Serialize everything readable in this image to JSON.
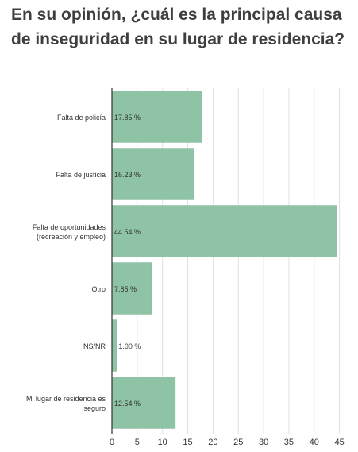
{
  "title": "En su opinión, ¿cuál es la principal causa de inseguridad en su lugar de residencia?",
  "colors": {
    "bar": "#8fc3a6",
    "bar_stroke": "#7ab393",
    "grid": "#e0e0e0",
    "axis": "#333333",
    "text": "#333333",
    "title": "#3f3f3f"
  },
  "chart_data": {
    "type": "bar",
    "orientation": "horizontal",
    "categories": [
      [
        "Falta de policía"
      ],
      [
        "Falta de justicia"
      ],
      [
        "Falta de oportunidades",
        "(recreación y empleo)"
      ],
      [
        "Otro"
      ],
      [
        "NS/NR"
      ],
      [
        "Mi lugar de residencia es",
        "seguro"
      ]
    ],
    "values": [
      17.85,
      16.23,
      44.54,
      7.85,
      1.0,
      12.54
    ],
    "value_labels": [
      "17.85 %",
      "16.23 %",
      "44.54 %",
      "7.85 %",
      "1.00 %",
      "12.54 %"
    ],
    "xticks": [
      0,
      5,
      10,
      15,
      20,
      25,
      30,
      35,
      40,
      45
    ],
    "xlim": [
      0,
      46
    ],
    "grid": true
  }
}
